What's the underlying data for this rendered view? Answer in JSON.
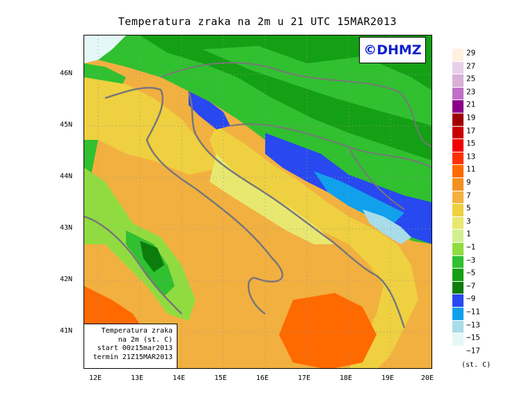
{
  "title": "Temperatura zraka na 2m u 21 UTC 15MAR2013",
  "copyright": "©DHMZ",
  "info_box": {
    "line1": "Temperatura zraka",
    "line2": "na 2m (st. C)",
    "line3": "start 00z15mar2013",
    "line4": "termin 21Z15MAR2013"
  },
  "lat_ticks": [
    "46N",
    "45N",
    "44N",
    "43N",
    "42N",
    "41N"
  ],
  "lon_ticks": [
    "12E",
    "13E",
    "14E",
    "15E",
    "16E",
    "17E",
    "18E",
    "19E",
    "20E"
  ],
  "legend": {
    "unit": "(st. C)",
    "labels": [
      "29",
      "27",
      "25",
      "23",
      "21",
      "19",
      "17",
      "15",
      "13",
      "11",
      "9",
      "7",
      "5",
      "3",
      "1",
      "−1",
      "−3",
      "−5",
      "−7",
      "−9",
      "−11",
      "−13",
      "−15",
      "−17"
    ],
    "colors": [
      "#fff0e0",
      "#e8d0e8",
      "#d8b0d8",
      "#c070c8",
      "#8a008a",
      "#a00000",
      "#c80000",
      "#f00000",
      "#ff3000",
      "#ff6a00",
      "#f29020",
      "#f2b040",
      "#eed040",
      "#e8e870",
      "#d0f090",
      "#90dc40",
      "#30c030",
      "#14a014",
      "#0c7d0c",
      "#2848f0",
      "#10a0ec",
      "#a8dce8",
      "#e4f8f8"
    ]
  }
}
